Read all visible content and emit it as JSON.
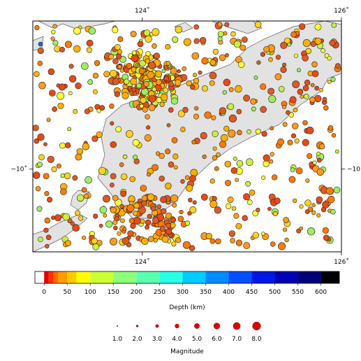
{
  "map": {
    "lon_range": [
      122.9,
      126.0
    ],
    "lat_range": [
      -11.05,
      -8.12
    ],
    "ocean_color": "#ffffff",
    "land_color": "#e2e2e2",
    "coast_color": "#606060",
    "lon_ticks": [
      {
        "value": 124,
        "label": "124˚"
      },
      {
        "value": 126,
        "label": "126˚"
      }
    ],
    "lat_ticks": [
      {
        "value": -10,
        "left_label": "−10˚",
        "right_label": "−10"
      }
    ]
  },
  "depth_scale": {
    "label": "Depth (km)",
    "range": [
      -20,
      640
    ],
    "tick_values": [
      0,
      50,
      100,
      150,
      200,
      250,
      300,
      350,
      400,
      450,
      500,
      550,
      600
    ],
    "tick_labels": [
      "0",
      "50",
      "100",
      "150",
      "200",
      "250",
      "300",
      "350",
      "400",
      "450",
      "500",
      "550",
      "600"
    ],
    "bands": [
      {
        "from": -20,
        "to": 0,
        "color": "#ffffff"
      },
      {
        "from": 0,
        "to": 10,
        "color": "#e60000"
      },
      {
        "from": 10,
        "to": 20,
        "color": "#ff3000"
      },
      {
        "from": 20,
        "to": 30,
        "color": "#ff6a00"
      },
      {
        "from": 30,
        "to": 50,
        "color": "#ff9a00"
      },
      {
        "from": 50,
        "to": 70,
        "color": "#ffcc00"
      },
      {
        "from": 70,
        "to": 100,
        "color": "#ffff00"
      },
      {
        "from": 100,
        "to": 150,
        "color": "#ccff33"
      },
      {
        "from": 150,
        "to": 200,
        "color": "#8cff78"
      },
      {
        "from": 200,
        "to": 250,
        "color": "#5cffb0"
      },
      {
        "from": 250,
        "to": 300,
        "color": "#2affe6"
      },
      {
        "from": 300,
        "to": 350,
        "color": "#00ccff"
      },
      {
        "from": 350,
        "to": 400,
        "color": "#008cff"
      },
      {
        "from": 400,
        "to": 450,
        "color": "#0050ff"
      },
      {
        "from": 450,
        "to": 500,
        "color": "#0018e6"
      },
      {
        "from": 500,
        "to": 550,
        "color": "#0000b4"
      },
      {
        "from": 550,
        "to": 600,
        "color": "#00007a"
      },
      {
        "from": 600,
        "to": 640,
        "color": "#000000"
      }
    ]
  },
  "magnitude_scale": {
    "label": "Magnitude",
    "values": [
      1.0,
      2.0,
      3.0,
      4.0,
      5.0,
      6.0,
      7.0,
      8.0
    ],
    "labels": [
      "1.0",
      "2.0",
      "3.0",
      "4.0",
      "5.0",
      "6.0",
      "7.0",
      "8.0"
    ],
    "marker_color": "#e00000"
  }
}
